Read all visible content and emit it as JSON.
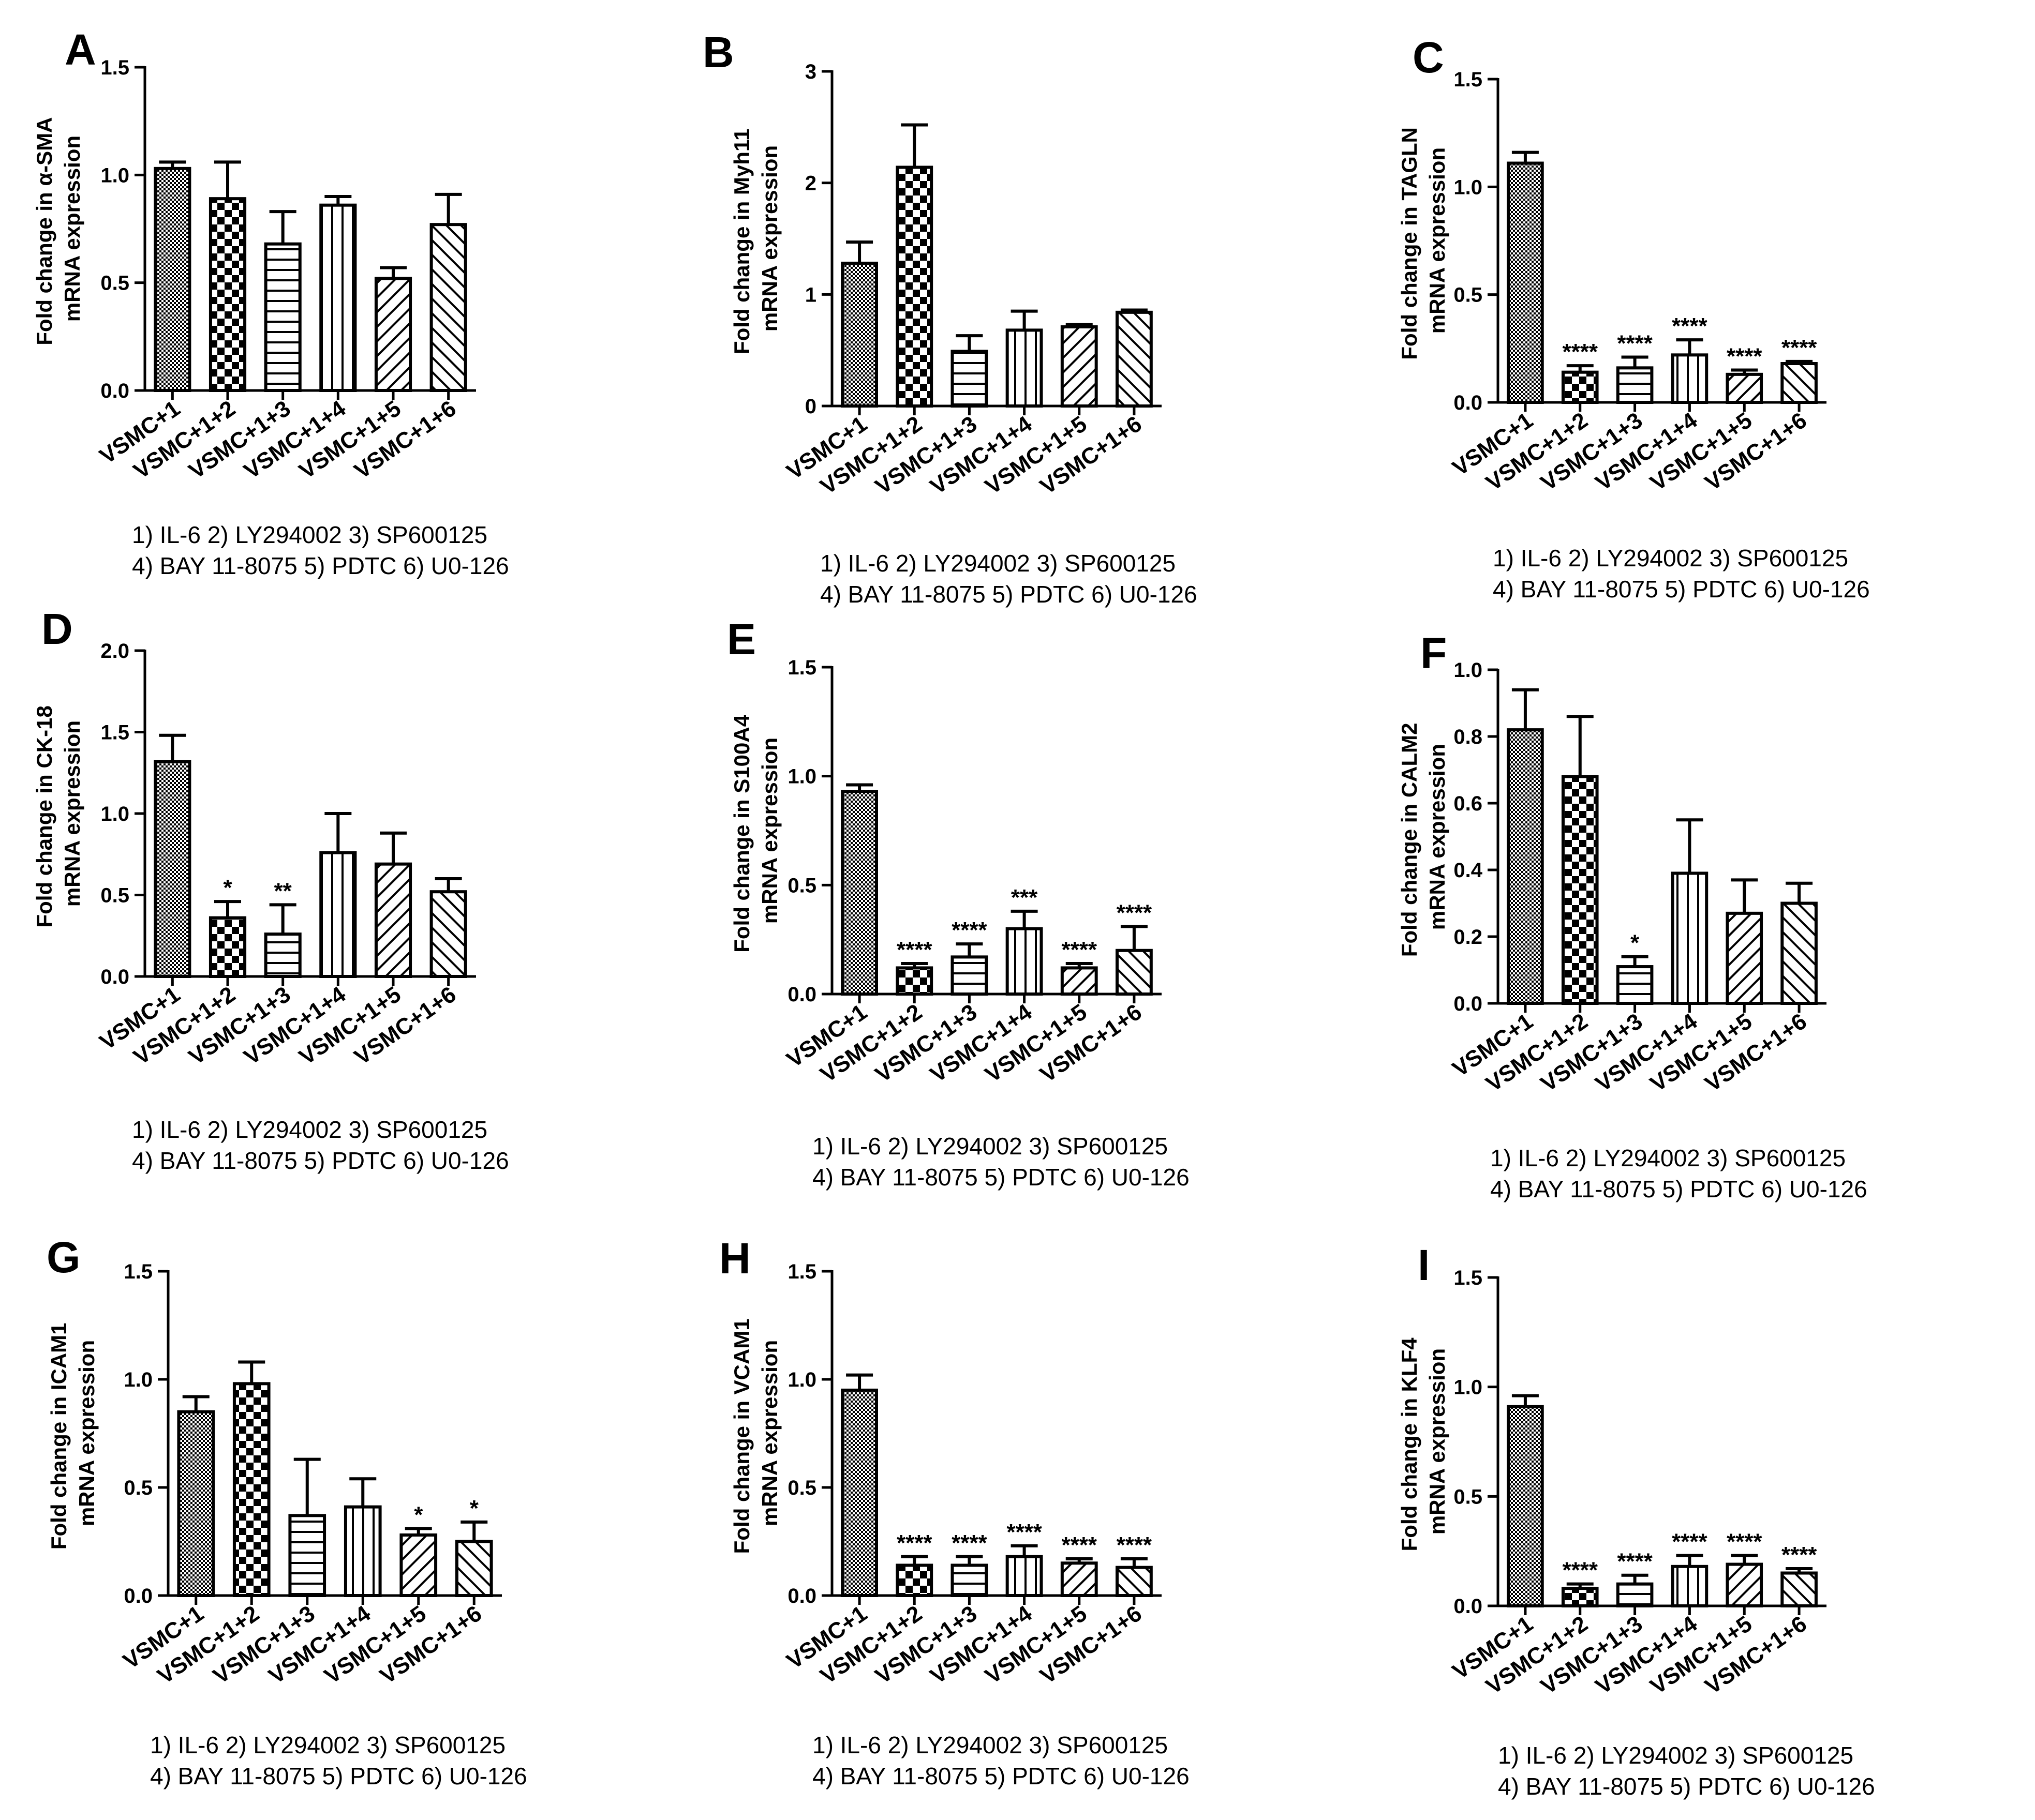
{
  "legend_lines": [
    "1) IL-6  2) LY294002  3) SP600125",
    "4) BAY 11-8075 5) PDTC 6) U0-126"
  ],
  "colors": {
    "ink": "#000000",
    "background": "#ffffff",
    "bar_fill": "#ffffff"
  },
  "fill_patterns": [
    "dense-dots",
    "checkerboard",
    "horizontal-lines",
    "vertical-lines",
    "diagonal-up",
    "diagonal-down"
  ],
  "chart_data": [
    {
      "type": "bar",
      "panel": "A",
      "ylabel_lines": [
        "Fold change in α-SMA",
        "mRNA expression"
      ],
      "categories": [
        "VSMC+1",
        "VSMC+1+2",
        "VSMC+1+3",
        "VSMC+1+4",
        "VSMC+1+5",
        "VSMC+1+6"
      ],
      "values": [
        1.03,
        0.89,
        0.68,
        0.86,
        0.52,
        0.77
      ],
      "errors": [
        0.03,
        0.17,
        0.15,
        0.04,
        0.05,
        0.14
      ],
      "significance": [
        "",
        "",
        "",
        "",
        "",
        ""
      ],
      "ylim": [
        0,
        1.5
      ],
      "yticks": [
        0,
        0.5,
        1.0,
        1.5
      ],
      "ytick_labels": [
        "0.0",
        "0.5",
        "1.0",
        "1.5"
      ]
    },
    {
      "type": "bar",
      "panel": "B",
      "ylabel_lines": [
        "Fold change in Myh11",
        "mRNA expression"
      ],
      "categories": [
        "VSMC+1",
        "VSMC+1+2",
        "VSMC+1+3",
        "VSMC+1+4",
        "VSMC+1+5",
        "VSMC+1+6"
      ],
      "values": [
        1.28,
        2.14,
        0.49,
        0.68,
        0.71,
        0.84
      ],
      "errors": [
        0.19,
        0.38,
        0.14,
        0.17,
        0.02,
        0.02
      ],
      "significance": [
        "",
        "",
        "",
        "",
        "",
        ""
      ],
      "ylim": [
        0,
        3
      ],
      "yticks": [
        0,
        1,
        2,
        3
      ],
      "ytick_labels": [
        "0",
        "1",
        "2",
        "3"
      ]
    },
    {
      "type": "bar",
      "panel": "C",
      "ylabel_lines": [
        "Fold change in TAGLN",
        "mRNA expression"
      ],
      "categories": [
        "VSMC+1",
        "VSMC+1+2",
        "VSMC+1+3",
        "VSMC+1+4",
        "VSMC+1+5",
        "VSMC+1+6"
      ],
      "values": [
        1.11,
        0.14,
        0.16,
        0.22,
        0.13,
        0.18
      ],
      "errors": [
        0.05,
        0.03,
        0.05,
        0.07,
        0.02,
        0.01
      ],
      "significance": [
        "",
        "****",
        "****",
        "****",
        "****",
        "****"
      ],
      "ylim": [
        0,
        1.5
      ],
      "yticks": [
        0,
        0.5,
        1.0,
        1.5
      ],
      "ytick_labels": [
        "0.0",
        "0.5",
        "1.0",
        "1.5"
      ]
    },
    {
      "type": "bar",
      "panel": "D",
      "ylabel_lines": [
        "Fold change in CK-18",
        "mRNA expression"
      ],
      "categories": [
        "VSMC+1",
        "VSMC+1+2",
        "VSMC+1+3",
        "VSMC+1+4",
        "VSMC+1+5",
        "VSMC+1+6"
      ],
      "values": [
        1.32,
        0.36,
        0.26,
        0.76,
        0.69,
        0.52
      ],
      "errors": [
        0.16,
        0.1,
        0.18,
        0.24,
        0.19,
        0.08
      ],
      "significance": [
        "",
        "*",
        "**",
        "",
        "",
        ""
      ],
      "ylim": [
        0,
        2.0
      ],
      "yticks": [
        0,
        0.5,
        1.0,
        1.5,
        2.0
      ],
      "ytick_labels": [
        "0.0",
        "0.5",
        "1.0",
        "1.5",
        "2.0"
      ]
    },
    {
      "type": "bar",
      "panel": "E",
      "ylabel_lines": [
        "Fold change in S100A4",
        "mRNA expression"
      ],
      "categories": [
        "VSMC+1",
        "VSMC+1+2",
        "VSMC+1+3",
        "VSMC+1+4",
        "VSMC+1+5",
        "VSMC+1+6"
      ],
      "values": [
        0.93,
        0.12,
        0.17,
        0.3,
        0.12,
        0.2
      ],
      "errors": [
        0.03,
        0.02,
        0.06,
        0.08,
        0.02,
        0.11
      ],
      "significance": [
        "",
        "****",
        "****",
        "***",
        "****",
        "****"
      ],
      "ylim": [
        0,
        1.5
      ],
      "yticks": [
        0,
        0.5,
        1.0,
        1.5
      ],
      "ytick_labels": [
        "0.0",
        "0.5",
        "1.0",
        "1.5"
      ]
    },
    {
      "type": "bar",
      "panel": "F",
      "ylabel_lines": [
        "Fold change in CALM2",
        "mRNA expression"
      ],
      "categories": [
        "VSMC+1",
        "VSMC+1+2",
        "VSMC+1+3",
        "VSMC+1+4",
        "VSMC+1+5",
        "VSMC+1+6"
      ],
      "values": [
        0.82,
        0.68,
        0.11,
        0.39,
        0.27,
        0.3
      ],
      "errors": [
        0.12,
        0.18,
        0.03,
        0.16,
        0.1,
        0.06
      ],
      "significance": [
        "",
        "",
        "*",
        "",
        "",
        ""
      ],
      "ylim": [
        0,
        1.0
      ],
      "yticks": [
        0,
        0.2,
        0.4,
        0.6,
        0.8,
        1.0
      ],
      "ytick_labels": [
        "0.0",
        "0.2",
        "0.4",
        "0.6",
        "0.8",
        "1.0"
      ]
    },
    {
      "type": "bar",
      "panel": "G",
      "ylabel_lines": [
        "Fold change in ICAM1",
        "mRNA expression"
      ],
      "categories": [
        "VSMC+1",
        "VSMC+1+2",
        "VSMC+1+3",
        "VSMC+1+4",
        "VSMC+1+5",
        "VSMC+1+6"
      ],
      "values": [
        0.85,
        0.98,
        0.37,
        0.41,
        0.28,
        0.25
      ],
      "errors": [
        0.07,
        0.1,
        0.26,
        0.13,
        0.03,
        0.09
      ],
      "significance": [
        "",
        "",
        "",
        "",
        "*",
        "*"
      ],
      "ylim": [
        0,
        1.5
      ],
      "yticks": [
        0,
        0.5,
        1.0,
        1.5
      ],
      "ytick_labels": [
        "0.0",
        "0.5",
        "1.0",
        "1.5"
      ]
    },
    {
      "type": "bar",
      "panel": "H",
      "ylabel_lines": [
        "Fold change in VCAM1",
        "mRNA expression"
      ],
      "categories": [
        "VSMC+1",
        "VSMC+1+2",
        "VSMC+1+3",
        "VSMC+1+4",
        "VSMC+1+5",
        "VSMC+1+6"
      ],
      "values": [
        0.95,
        0.14,
        0.14,
        0.18,
        0.15,
        0.13
      ],
      "errors": [
        0.07,
        0.04,
        0.04,
        0.05,
        0.02,
        0.04
      ],
      "significance": [
        "",
        "****",
        "****",
        "****",
        "****",
        "****"
      ],
      "ylim": [
        0,
        1.5
      ],
      "yticks": [
        0,
        0.5,
        1.0,
        1.5
      ],
      "ytick_labels": [
        "0.0",
        "0.5",
        "1.0",
        "1.5"
      ]
    },
    {
      "type": "bar",
      "panel": "I",
      "ylabel_lines": [
        "Fold change in KLF4",
        "mRNA expression"
      ],
      "categories": [
        "VSMC+1",
        "VSMC+1+2",
        "VSMC+1+3",
        "VSMC+1+4",
        "VSMC+1+5",
        "VSMC+1+6"
      ],
      "values": [
        0.91,
        0.08,
        0.1,
        0.18,
        0.19,
        0.15
      ],
      "errors": [
        0.05,
        0.02,
        0.04,
        0.05,
        0.04,
        0.02
      ],
      "significance": [
        "",
        "****",
        "****",
        "****",
        "****",
        "****"
      ],
      "ylim": [
        0,
        1.5
      ],
      "yticks": [
        0,
        0.5,
        1.0,
        1.5
      ],
      "ytick_labels": [
        "0.0",
        "0.5",
        "1.0",
        "1.5"
      ]
    }
  ]
}
